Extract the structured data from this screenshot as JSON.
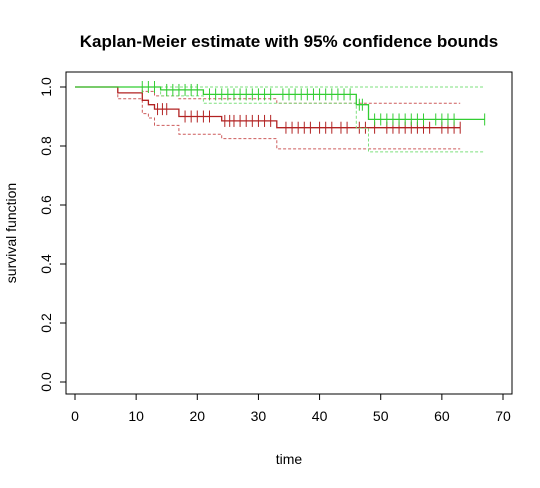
{
  "chart_data": {
    "type": "line",
    "title": "Kaplan-Meier estimate with 95% confidence bounds",
    "xlabel": "time",
    "ylabel": "survival function",
    "xlim": [
      0,
      70
    ],
    "ylim": [
      0,
      1
    ],
    "xticks": [
      "0",
      "10",
      "20",
      "30",
      "40",
      "50",
      "60",
      "70"
    ],
    "yticks": [
      "0.0",
      "0.2",
      "0.4",
      "0.6",
      "0.8",
      "1.0"
    ],
    "grid": false,
    "legend": "none",
    "colors": {
      "red": "#b22222",
      "red_ci": "#cd5c5c",
      "green": "#32cd32",
      "green_ci": "#7ee07e"
    },
    "series": [
      {
        "color_key": "red",
        "step": [
          [
            0,
            1.0
          ],
          [
            7,
            1.0
          ],
          [
            7,
            0.98
          ],
          [
            11,
            0.98
          ],
          [
            11,
            0.955
          ],
          [
            12,
            0.955
          ],
          [
            12,
            0.94
          ],
          [
            13,
            0.94
          ],
          [
            13,
            0.925
          ],
          [
            17,
            0.925
          ],
          [
            17,
            0.9
          ],
          [
            24,
            0.9
          ],
          [
            24,
            0.885
          ],
          [
            33,
            0.885
          ],
          [
            33,
            0.862
          ],
          [
            63,
            0.862
          ]
        ],
        "censor_x": [
          13.5,
          14.3,
          15,
          18,
          19,
          20,
          21,
          22,
          24.5,
          25.3,
          26,
          27,
          28,
          29,
          30,
          31,
          32,
          34.5,
          35.5,
          36.5,
          37.5,
          38.5,
          40,
          41,
          42,
          43.5,
          44.5,
          46.5,
          47.5,
          49,
          51,
          52,
          53,
          54,
          55,
          56,
          57,
          58,
          60,
          61,
          62,
          63
        ],
        "upper": [
          [
            0,
            1.0
          ],
          [
            7,
            1.0
          ],
          [
            7,
            1.0
          ],
          [
            11,
            1.0
          ],
          [
            11,
            0.985
          ],
          [
            13,
            0.985
          ],
          [
            13,
            0.97
          ],
          [
            17,
            0.97
          ],
          [
            17,
            0.96
          ],
          [
            33,
            0.96
          ],
          [
            33,
            0.945
          ],
          [
            63,
            0.945
          ]
        ],
        "lower": [
          [
            0,
            1.0
          ],
          [
            7,
            1.0
          ],
          [
            7,
            0.96
          ],
          [
            11,
            0.96
          ],
          [
            11,
            0.91
          ],
          [
            12,
            0.91
          ],
          [
            12,
            0.895
          ],
          [
            13,
            0.895
          ],
          [
            13,
            0.87
          ],
          [
            17,
            0.87
          ],
          [
            17,
            0.84
          ],
          [
            24,
            0.84
          ],
          [
            24,
            0.825
          ],
          [
            33,
            0.825
          ],
          [
            33,
            0.79
          ],
          [
            63,
            0.79
          ]
        ]
      },
      {
        "color_key": "green",
        "step": [
          [
            0,
            1.0
          ],
          [
            14,
            1.0
          ],
          [
            14,
            0.99
          ],
          [
            21,
            0.99
          ],
          [
            21,
            0.975
          ],
          [
            46,
            0.975
          ],
          [
            46,
            0.94
          ],
          [
            48,
            0.94
          ],
          [
            48,
            0.89
          ],
          [
            67,
            0.89
          ]
        ],
        "censor_x": [
          11,
          12,
          13,
          15,
          16,
          17,
          18,
          19,
          20,
          22,
          23,
          24,
          25,
          26,
          27,
          28,
          29,
          30,
          31,
          32,
          34,
          35,
          36,
          37,
          38,
          39,
          40,
          41,
          42,
          43,
          44,
          45,
          46.5,
          47,
          49,
          50,
          51,
          52,
          53,
          54,
          55,
          56,
          57,
          59,
          60,
          61,
          62,
          67
        ],
        "upper": [
          [
            0,
            1.0
          ],
          [
            14,
            1.0
          ],
          [
            14,
            1.0
          ],
          [
            67,
            1.0
          ]
        ],
        "lower": [
          [
            0,
            1.0
          ],
          [
            14,
            1.0
          ],
          [
            14,
            0.97
          ],
          [
            21,
            0.97
          ],
          [
            21,
            0.945
          ],
          [
            46,
            0.945
          ],
          [
            46,
            0.86
          ],
          [
            48,
            0.86
          ],
          [
            48,
            0.78
          ],
          [
            67,
            0.78
          ]
        ]
      }
    ]
  }
}
